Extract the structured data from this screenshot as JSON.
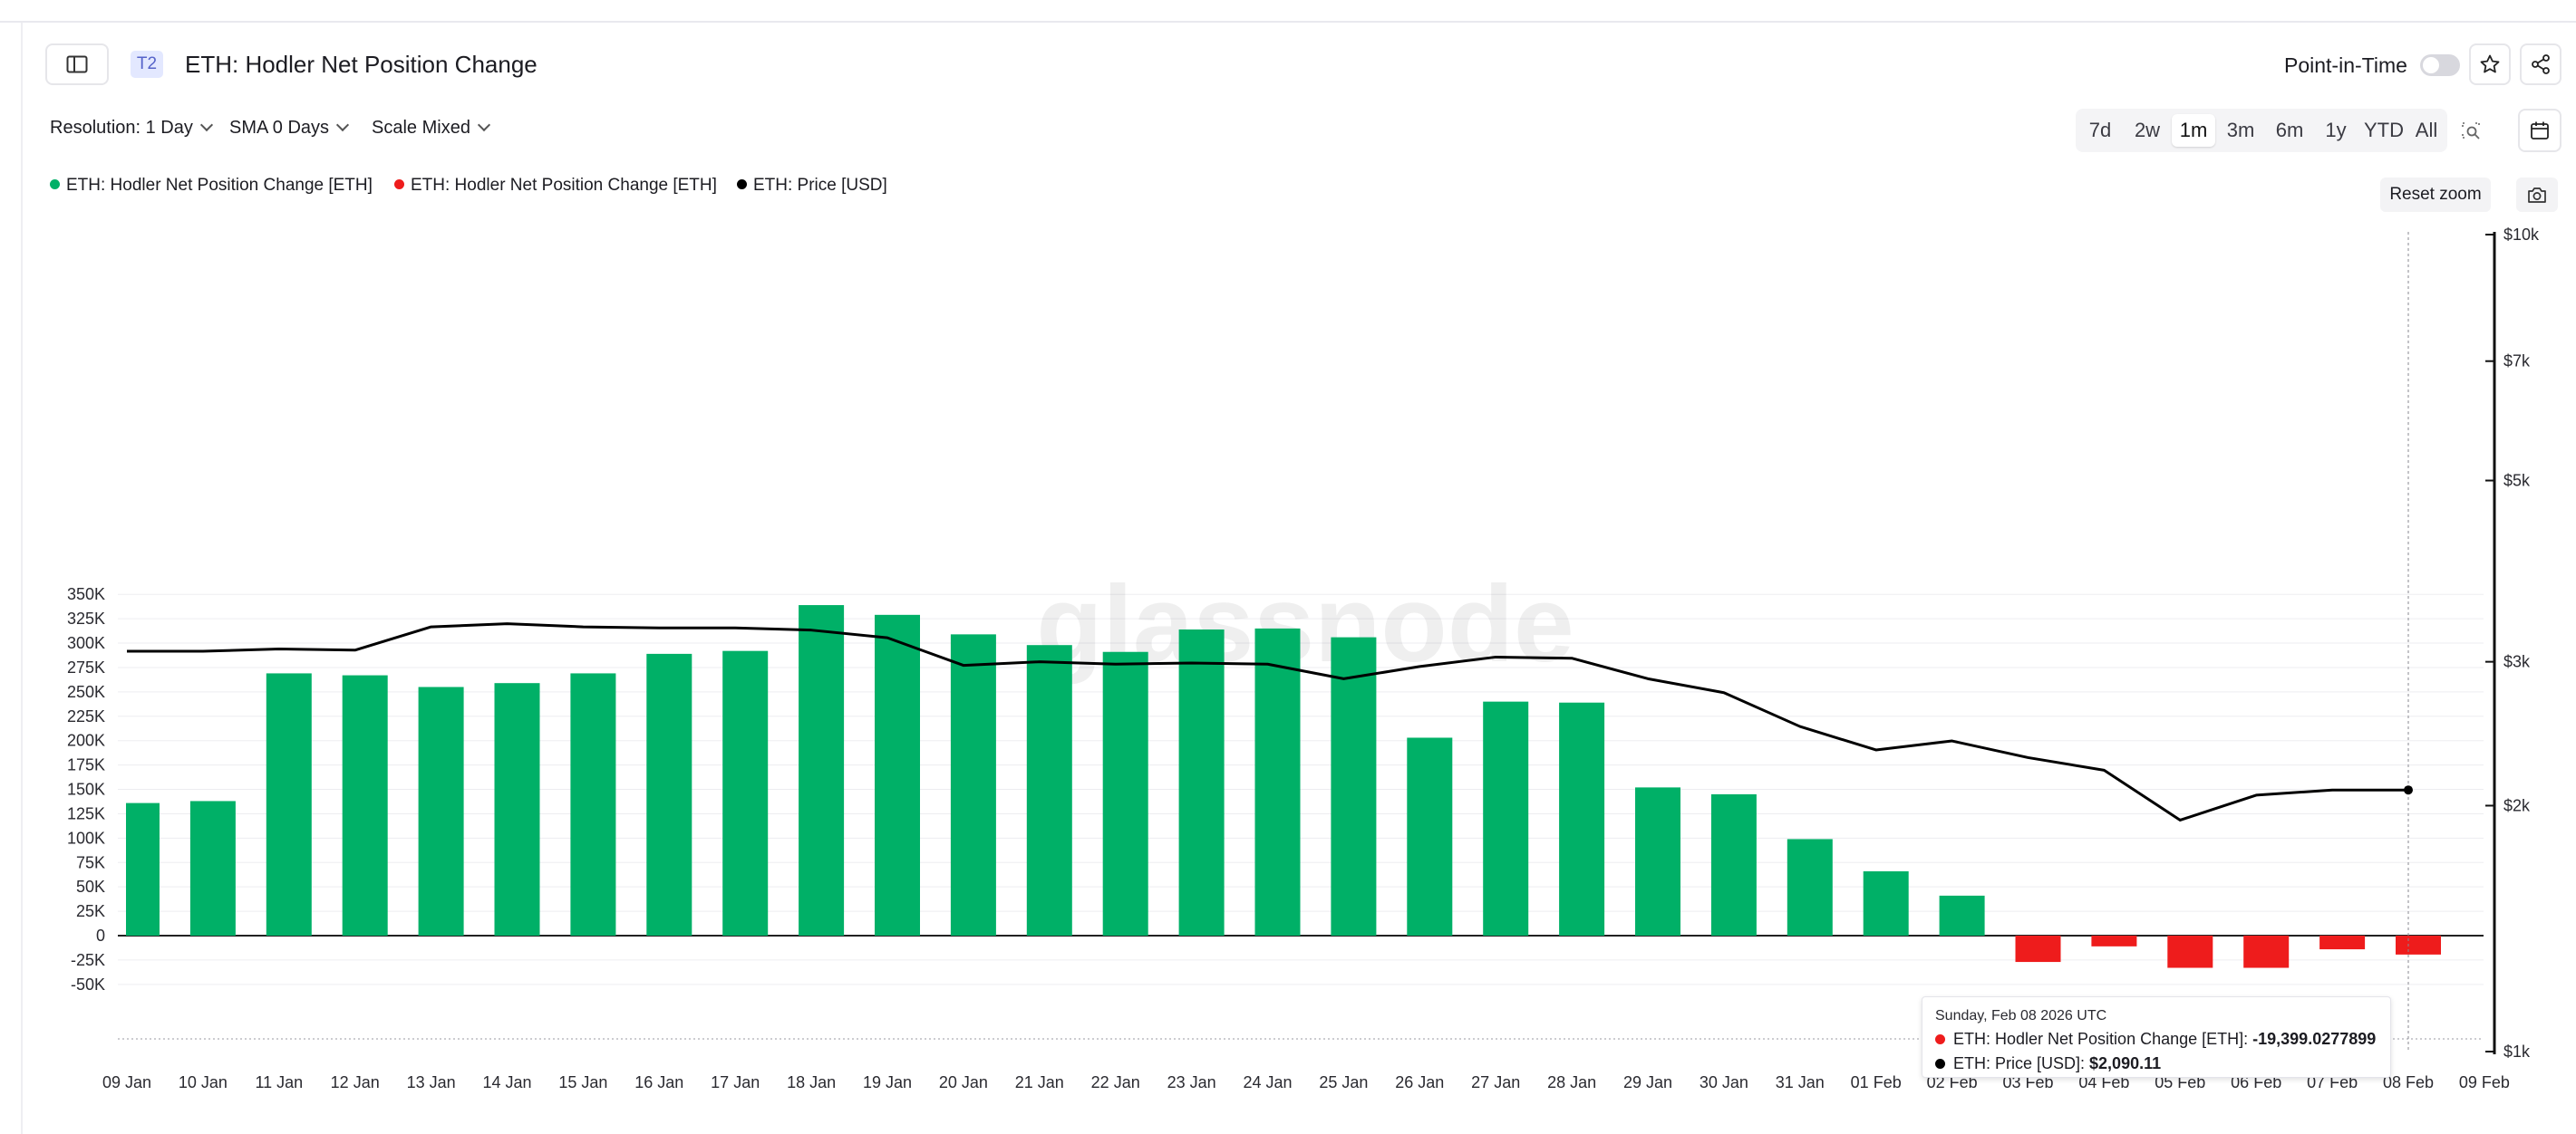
{
  "header": {
    "tier_badge": "T2",
    "title": "ETH: Hodler Net Position Change",
    "point_in_time_label": "Point-in-Time",
    "point_in_time_enabled": false
  },
  "controls": {
    "resolution": "Resolution: 1 Day",
    "sma": "SMA 0 Days",
    "scale": "Scale Mixed"
  },
  "ranges": [
    "7d",
    "2w",
    "1m",
    "3m",
    "6m",
    "1y",
    "YTD",
    "All"
  ],
  "active_range": "1m",
  "legend": [
    {
      "label": "ETH: Hodler Net Position Change [ETH]",
      "color": "#00b067"
    },
    {
      "label": "ETH: Hodler Net Position Change [ETH]",
      "color": "#ee1c1c"
    },
    {
      "label": "ETH: Price [USD]",
      "color": "#000000"
    }
  ],
  "reset_zoom_label": "Reset zoom",
  "watermark": "glassnode",
  "tooltip": {
    "date": "Sunday, Feb 08 2026 UTC",
    "rows": [
      {
        "label": "ETH: Hodler Net Position Change [ETH]: ",
        "value": "-19,399.0277899",
        "color": "#ee1c1c"
      },
      {
        "label": "ETH: Price [USD]: ",
        "value": "$2,090.11",
        "color": "#000000"
      }
    ]
  },
  "chart_data": {
    "type": "bar",
    "categories": [
      "09 Jan",
      "10 Jan",
      "11 Jan",
      "12 Jan",
      "13 Jan",
      "14 Jan",
      "15 Jan",
      "16 Jan",
      "17 Jan",
      "18 Jan",
      "19 Jan",
      "20 Jan",
      "21 Jan",
      "22 Jan",
      "23 Jan",
      "24 Jan",
      "25 Jan",
      "26 Jan",
      "27 Jan",
      "28 Jan",
      "29 Jan",
      "30 Jan",
      "31 Jan",
      "01 Feb",
      "02 Feb",
      "03 Feb",
      "04 Feb",
      "05 Feb",
      "06 Feb",
      "07 Feb",
      "08 Feb"
    ],
    "x_tick_labels": [
      "09 Jan",
      "10 Jan",
      "11 Jan",
      "12 Jan",
      "13 Jan",
      "14 Jan",
      "15 Jan",
      "16 Jan",
      "17 Jan",
      "18 Jan",
      "19 Jan",
      "20 Jan",
      "21 Jan",
      "22 Jan",
      "23 Jan",
      "24 Jan",
      "25 Jan",
      "26 Jan",
      "27 Jan",
      "28 Jan",
      "29 Jan",
      "30 Jan",
      "31 Jan",
      "01 Feb",
      "02 Feb",
      "03 Feb",
      "04 Feb",
      "05 Feb",
      "06 Feb",
      "07 Feb",
      "08 Feb",
      "09 Feb"
    ],
    "series": [
      {
        "name": "ETH: Hodler Net Position Change [ETH]",
        "axis": "left",
        "positive_color": "#00b067",
        "negative_color": "#ee1c1c",
        "values": [
          136000,
          138000,
          269000,
          267000,
          255000,
          259000,
          269000,
          289000,
          292000,
          339000,
          329000,
          309000,
          298000,
          291000,
          314000,
          315000,
          306000,
          203000,
          240000,
          239000,
          152000,
          145000,
          99000,
          66000,
          41000,
          -27000,
          -11000,
          -33000,
          -33000,
          -14000,
          -19399.0277899
        ]
      },
      {
        "name": "ETH: Price [USD]",
        "axis": "right",
        "color": "#000000",
        "values": [
          3090,
          3090,
          3110,
          3100,
          3310,
          3340,
          3310,
          3300,
          3300,
          3280,
          3210,
          2970,
          3000,
          2980,
          2990,
          2980,
          2860,
          2960,
          3040,
          3030,
          2860,
          2750,
          2500,
          2340,
          2400,
          2290,
          2210,
          1920,
          2060,
          2090,
          2090.11
        ]
      }
    ],
    "y_left": {
      "min": -50000,
      "max": 350000,
      "ticks": [
        -50000,
        -25000,
        0,
        25000,
        50000,
        75000,
        100000,
        125000,
        150000,
        175000,
        200000,
        225000,
        250000,
        275000,
        300000,
        325000,
        350000
      ],
      "tick_labels": [
        "-50K",
        "-25K",
        "0",
        "25K",
        "50K",
        "75K",
        "100K",
        "125K",
        "150K",
        "175K",
        "200K",
        "225K",
        "250K",
        "275K",
        "300K",
        "325K",
        "350K"
      ]
    },
    "y_right": {
      "scale": "log",
      "ticks": [
        1000,
        2000,
        3000,
        5000,
        7000,
        10000
      ],
      "tick_labels": [
        "$1k",
        "$2k",
        "$3k",
        "$5k",
        "$7k",
        "$10k"
      ]
    },
    "grid": true
  }
}
